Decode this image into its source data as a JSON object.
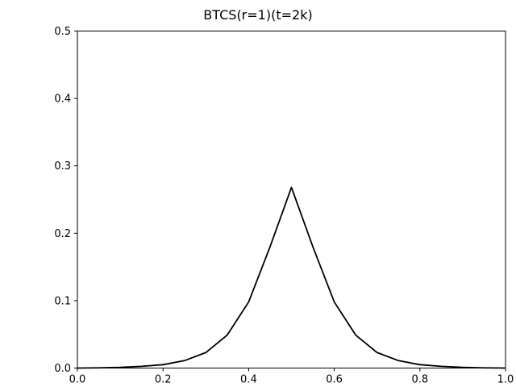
{
  "chart_data": {
    "type": "line",
    "title": "BTCS(r=1)(t=2k)",
    "xlabel": "",
    "ylabel": "",
    "xlim": [
      0.0,
      1.0
    ],
    "ylim": [
      0.0,
      0.5
    ],
    "x_ticks": [
      "0.0",
      "0.2",
      "0.4",
      "0.6",
      "0.8",
      "1.0"
    ],
    "y_ticks": [
      "0.0",
      "0.1",
      "0.2",
      "0.3",
      "0.4",
      "0.5"
    ],
    "grid": false,
    "legend": "none",
    "series": [
      {
        "color": "#000000",
        "x": [
          0.0,
          0.05,
          0.1,
          0.15,
          0.2,
          0.25,
          0.3,
          0.35,
          0.4,
          0.45,
          0.5,
          0.55,
          0.6,
          0.65,
          0.7,
          0.75,
          0.8,
          0.85,
          0.9,
          0.95,
          1.0
        ],
        "y": [
          0.0,
          0.0003,
          0.001,
          0.0025,
          0.005,
          0.011,
          0.023,
          0.049,
          0.098,
          0.18,
          0.268,
          0.18,
          0.098,
          0.049,
          0.023,
          0.011,
          0.005,
          0.0025,
          0.001,
          0.0003,
          0.0
        ]
      }
    ]
  }
}
